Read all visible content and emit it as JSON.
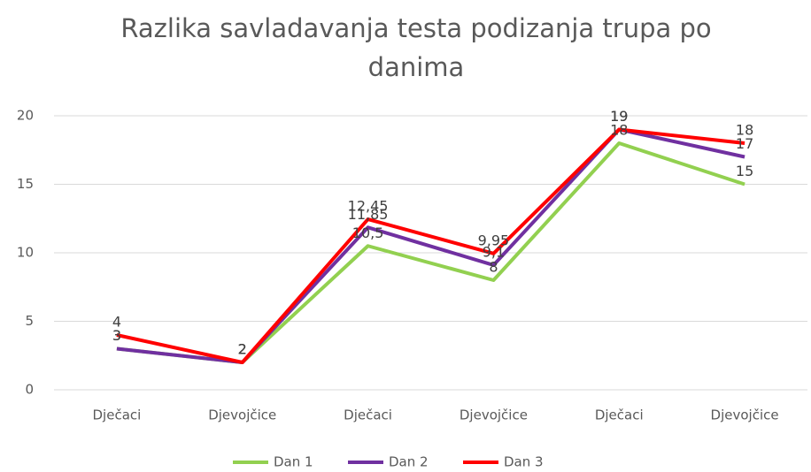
{
  "chart_data": {
    "type": "line",
    "title": "Razlika savladavanja testa podizanja trupa po danima",
    "categories": [
      "Dječaci",
      "Djevojčice",
      "Dječaci",
      "Djevojčice",
      "Dječaci",
      "Djevojčice"
    ],
    "series": [
      {
        "name": "Dan 1",
        "color": "#92d050",
        "values": [
          3,
          2,
          10.5,
          8,
          18,
          15
        ],
        "value_labels": [
          "3",
          "2",
          "10,5",
          "8",
          "18",
          "15"
        ]
      },
      {
        "name": "Dan 2",
        "color": "#7030a0",
        "values": [
          3,
          2,
          11.85,
          9.1,
          19,
          17
        ],
        "value_labels": [
          "3",
          "2",
          "11,85",
          "9,1",
          "19",
          "17"
        ]
      },
      {
        "name": "Dan 3",
        "color": "#ff0000",
        "values": [
          4,
          2,
          12.45,
          9.95,
          19,
          18
        ],
        "value_labels": [
          "4",
          "2",
          "12,45",
          "9,95",
          "19",
          "18"
        ]
      }
    ],
    "ylim": [
      0,
      20
    ],
    "yticks": [
      0,
      5,
      10,
      15,
      20
    ],
    "grid": true,
    "legend": "bottom"
  }
}
